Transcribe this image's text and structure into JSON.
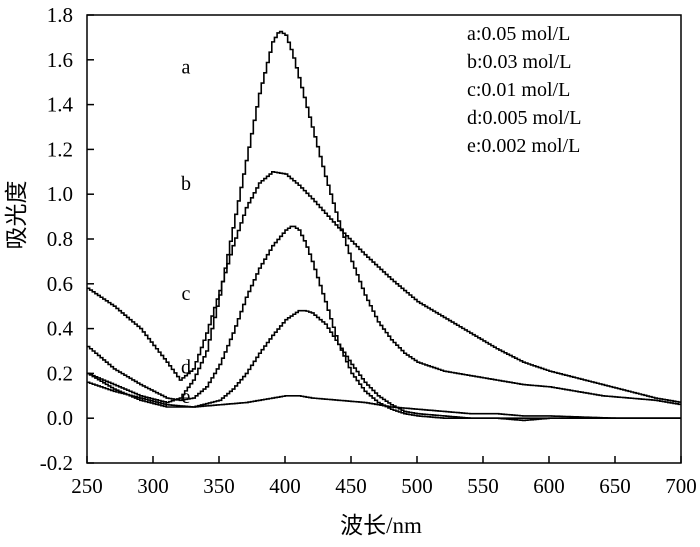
{
  "chart_data": {
    "type": "line",
    "title": "",
    "xlabel": "波长/nm",
    "ylabel": "吸光度",
    "xlim": [
      250,
      700
    ],
    "ylim": [
      -0.2,
      1.8
    ],
    "x_ticks": [
      250,
      300,
      350,
      400,
      450,
      500,
      550,
      600,
      650,
      700
    ],
    "y_ticks": [
      -0.2,
      0.0,
      0.2,
      0.4,
      0.6,
      0.8,
      1.0,
      1.2,
      1.4,
      1.6,
      1.8
    ],
    "y_tick_labels": [
      "-0.2",
      "0.0",
      "0.2",
      "0.4",
      "0.6",
      "0.8",
      "1.0",
      "1.2",
      "1.4",
      "1.6",
      "1.8"
    ],
    "grid": false,
    "legend_position": "top-right",
    "legend": [
      "a:0.05 mol/L",
      "b:0.03 mol/L",
      "c:0.01 mol/L",
      "d:0.005 mol/L",
      "e:0.002 mol/L"
    ],
    "series": [
      {
        "name": "a",
        "label_at": [
          32.5,
          1.57
        ],
        "x": [
          250,
          270,
          290,
          310,
          320,
          325,
          330,
          340,
          350,
          360,
          370,
          380,
          390,
          395,
          400,
          405,
          410,
          420,
          430,
          440,
          450,
          460,
          470,
          480,
          490,
          500,
          520,
          540,
          560,
          580,
          600,
          620,
          640,
          660,
          680,
          700
        ],
        "y": [
          0.2,
          0.15,
          0.1,
          0.07,
          0.09,
          0.13,
          0.17,
          0.3,
          0.55,
          0.85,
          1.15,
          1.45,
          1.68,
          1.73,
          1.71,
          1.63,
          1.52,
          1.3,
          1.08,
          0.88,
          0.7,
          0.55,
          0.43,
          0.35,
          0.29,
          0.25,
          0.21,
          0.19,
          0.17,
          0.15,
          0.14,
          0.12,
          0.1,
          0.09,
          0.08,
          0.06
        ]
      },
      {
        "name": "b",
        "label_at": [
          32.5,
          1.05
        ],
        "x": [
          250,
          270,
          290,
          310,
          320,
          330,
          340,
          350,
          360,
          370,
          380,
          390,
          400,
          410,
          420,
          440,
          460,
          480,
          500,
          520,
          540,
          560,
          580,
          600,
          620,
          640,
          660,
          680,
          700
        ],
        "y": [
          0.58,
          0.5,
          0.4,
          0.25,
          0.17,
          0.22,
          0.38,
          0.57,
          0.77,
          0.94,
          1.05,
          1.1,
          1.09,
          1.04,
          0.98,
          0.85,
          0.73,
          0.62,
          0.52,
          0.45,
          0.38,
          0.31,
          0.25,
          0.21,
          0.18,
          0.15,
          0.12,
          0.09,
          0.07
        ]
      },
      {
        "name": "c",
        "label_at": [
          32.5,
          0.56
        ],
        "x": [
          250,
          270,
          290,
          310,
          320,
          330,
          340,
          350,
          360,
          370,
          380,
          390,
          400,
          405,
          410,
          415,
          420,
          430,
          440,
          450,
          460,
          470,
          480,
          490,
          500,
          520,
          540,
          560,
          580,
          600,
          620,
          650,
          680,
          700
        ],
        "y": [
          0.32,
          0.22,
          0.15,
          0.09,
          0.08,
          0.09,
          0.14,
          0.24,
          0.38,
          0.54,
          0.67,
          0.77,
          0.84,
          0.86,
          0.84,
          0.78,
          0.7,
          0.52,
          0.33,
          0.2,
          0.12,
          0.07,
          0.04,
          0.02,
          0.01,
          0.0,
          0.0,
          0.0,
          0.0,
          0.0,
          0.0,
          0.0,
          0.0,
          0.0
        ]
      },
      {
        "name": "d",
        "label_at": [
          32.5,
          0.23
        ],
        "x": [
          250,
          270,
          290,
          310,
          330,
          350,
          360,
          370,
          380,
          390,
          400,
          410,
          415,
          420,
          430,
          440,
          450,
          460,
          470,
          480,
          490,
          500,
          520,
          540,
          560,
          580,
          600,
          650,
          700
        ],
        "y": [
          0.2,
          0.13,
          0.08,
          0.05,
          0.05,
          0.08,
          0.13,
          0.2,
          0.29,
          0.37,
          0.44,
          0.48,
          0.48,
          0.47,
          0.42,
          0.33,
          0.24,
          0.16,
          0.1,
          0.06,
          0.03,
          0.02,
          0.01,
          0.0,
          0.0,
          -0.01,
          0.0,
          0.0,
          0.0
        ]
      },
      {
        "name": "e",
        "label_at": [
          32.5,
          0.1
        ],
        "x": [
          250,
          270,
          290,
          310,
          330,
          350,
          370,
          390,
          400,
          410,
          420,
          440,
          460,
          480,
          500,
          520,
          540,
          560,
          580,
          600,
          650,
          700
        ],
        "y": [
          0.16,
          0.12,
          0.09,
          0.06,
          0.05,
          0.06,
          0.07,
          0.09,
          0.1,
          0.1,
          0.09,
          0.08,
          0.07,
          0.05,
          0.04,
          0.03,
          0.02,
          0.02,
          0.01,
          0.01,
          0.0,
          0.0
        ]
      }
    ]
  }
}
